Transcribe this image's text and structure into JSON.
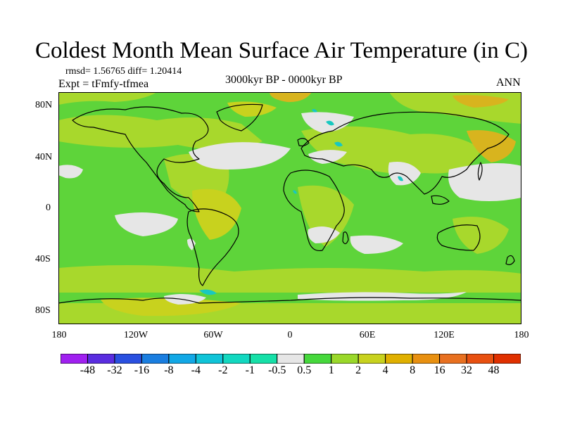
{
  "title": "Coldest Month Mean Surface Air Temperature (in C)",
  "stats": "rmsd= 1.56765 diff= 1.20414",
  "experiment": "Expt = tFmfy-tfmea",
  "period": "3000kyr BP - 0000kyr BP",
  "season": "ANN",
  "axes": {
    "y_labels": [
      "80N",
      "40N",
      "0",
      "40S",
      "80S"
    ],
    "x_labels": [
      "180",
      "120W",
      "60W",
      "0",
      "60E",
      "120E",
      "180"
    ]
  },
  "colorbar": {
    "labels": [
      "-48",
      "-32",
      "-16",
      "-8",
      "-4",
      "-2",
      "-1",
      "-0.5",
      "0.5",
      "1",
      "2",
      "4",
      "8",
      "16",
      "32",
      "48"
    ],
    "colors": [
      "#a020f0",
      "#5a2de0",
      "#2a50e0",
      "#1a7ee0",
      "#12a8e6",
      "#10c4d8",
      "#12d8c0",
      "#16e0a8",
      "#e6e6e6",
      "#46d83c",
      "#9ad82a",
      "#c8d21e",
      "#e0b000",
      "#e89010",
      "#e87020",
      "#e85010",
      "#e03000"
    ]
  },
  "palette": {
    "warm": "#5ed43a",
    "warmer": "#a8d82c",
    "warmest": "#d8b41e",
    "neutral": "#e6e6e6",
    "cool": "#18c8c0",
    "coast": "#000000"
  }
}
